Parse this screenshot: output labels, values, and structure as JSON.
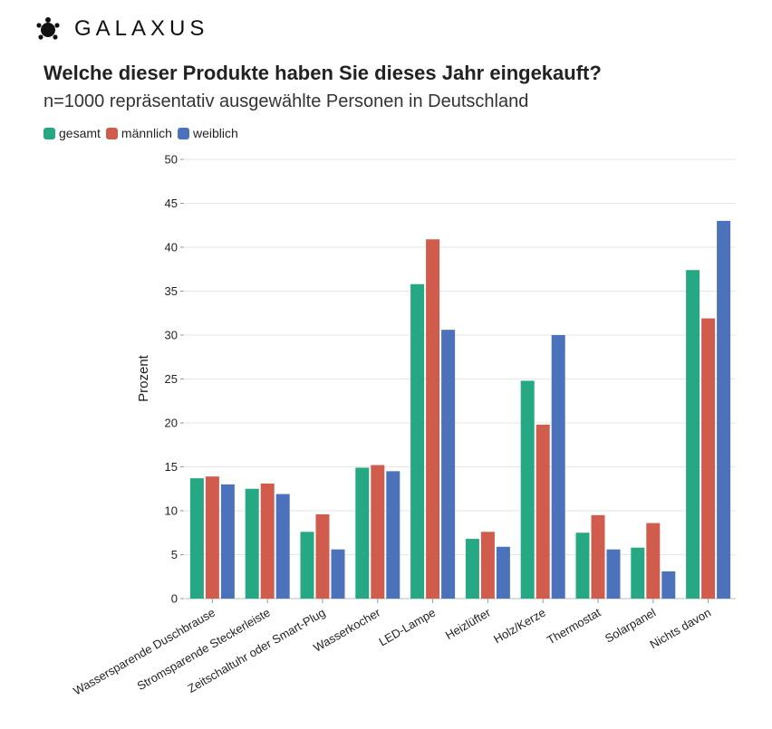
{
  "brand": {
    "name": "GALAXUS",
    "logo_icon": "galaxus-turtle-icon"
  },
  "colors": {
    "gesamt": "#26a884",
    "maennlich": "#cf5c4d",
    "weiblich": "#4b72ba",
    "grid": "#e6e6e6"
  },
  "chart_data": {
    "type": "bar",
    "title": "Welche dieser Produkte haben Sie dieses Jahr eingekauft?",
    "subtitle": "n=1000 repräsentativ ausgewählte Personen in Deutschland",
    "xlabel": "",
    "ylabel": "Prozent",
    "ylim": [
      0,
      50
    ],
    "yticks": [
      0,
      5,
      10,
      15,
      20,
      25,
      30,
      35,
      40,
      45,
      50
    ],
    "grid": true,
    "legend_position": "top-left",
    "categories": [
      "Wassersparende Duschbrause",
      "Stromsparende Steckerleiste",
      "Zeitschaltuhr oder Smart-Plug",
      "Wasserkocher",
      "LED-Lampe",
      "Heizlüfter",
      "Holz/Kerze",
      "Thermostat",
      "Solarpanel",
      "Nichts davon"
    ],
    "series": [
      {
        "name": "gesamt",
        "values": [
          13.7,
          12.5,
          7.6,
          14.9,
          35.8,
          6.8,
          24.8,
          7.5,
          5.8,
          37.4
        ]
      },
      {
        "name": "männlich",
        "values": [
          13.9,
          13.1,
          9.6,
          15.2,
          40.9,
          7.6,
          19.8,
          9.5,
          8.6,
          31.9
        ]
      },
      {
        "name": "weiblich",
        "values": [
          13.0,
          11.9,
          5.6,
          14.5,
          30.6,
          5.9,
          30.0,
          5.6,
          3.1,
          43.0
        ]
      }
    ]
  }
}
